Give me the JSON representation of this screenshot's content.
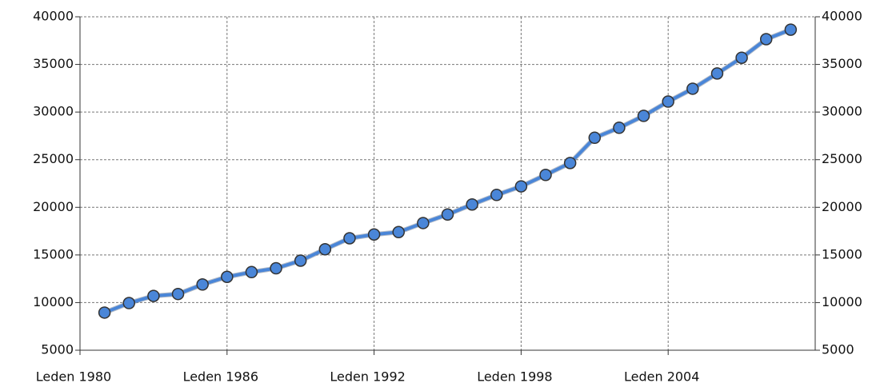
{
  "chart_data": {
    "type": "line",
    "x": [
      1981,
      1982,
      1983,
      1984,
      1985,
      1986,
      1987,
      1988,
      1989,
      1990,
      1991,
      1992,
      1993,
      1994,
      1995,
      1996,
      1997,
      1998,
      1999,
      2000,
      2001,
      2002,
      2003,
      2004,
      2005,
      2006,
      2007,
      2008,
      2009
    ],
    "series": [
      {
        "color": "#4a86d8",
        "values": [
          8950,
          9950,
          10700,
          10900,
          11900,
          12700,
          13200,
          13600,
          14400,
          15600,
          16750,
          17150,
          17400,
          18350,
          19250,
          20300,
          21300,
          22200,
          23400,
          24650,
          27300,
          28350,
          29600,
          31100,
          32450,
          34050,
          35700,
          37650,
          38650
        ]
      }
    ],
    "xlim": [
      1980,
      2010
    ],
    "xticks": [
      {
        "value": 1980,
        "label": "Leden 1980"
      },
      {
        "value": 1986,
        "label": "Leden 1986"
      },
      {
        "value": 1992,
        "label": "Leden 1992"
      },
      {
        "value": 1998,
        "label": "Leden 1998"
      },
      {
        "value": 2004,
        "label": "Leden 2004"
      }
    ],
    "ylim": [
      5000,
      40000
    ],
    "yticks": [
      5000,
      10000,
      15000,
      20000,
      25000,
      30000,
      35000,
      40000
    ],
    "y2lim": [
      5000,
      40000
    ],
    "y2ticks": [
      5000,
      10000,
      15000,
      20000,
      25000,
      30000,
      35000,
      40000
    ],
    "grid": true
  }
}
